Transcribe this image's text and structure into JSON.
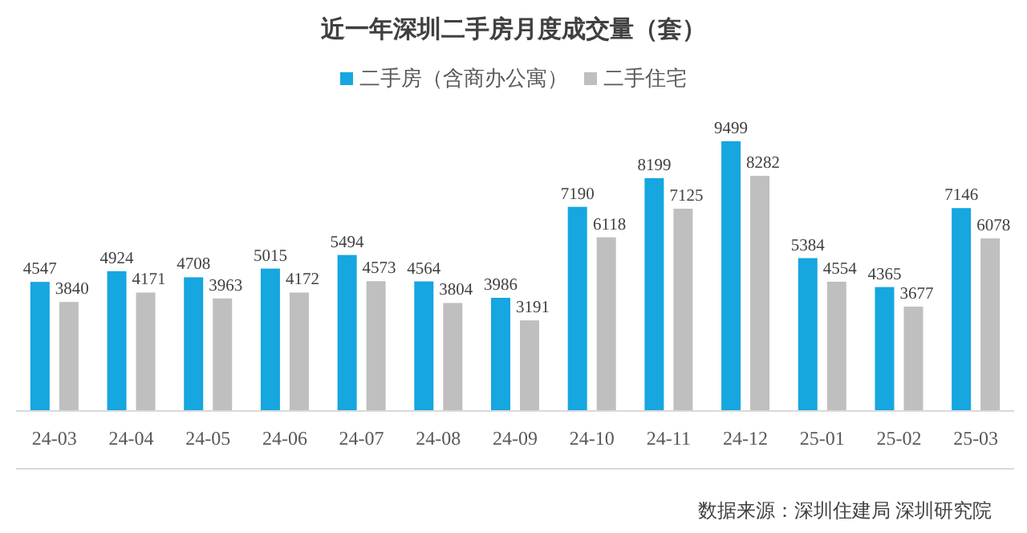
{
  "chart_data": {
    "type": "bar",
    "title": "近一年深圳二手房月度成交量（套）",
    "categories": [
      "24-03",
      "24-04",
      "24-05",
      "24-06",
      "24-07",
      "24-08",
      "24-09",
      "24-10",
      "24-11",
      "24-12",
      "25-01",
      "25-02",
      "25-03"
    ],
    "series": [
      {
        "name": "二手房（含商办公寓）",
        "color": "#16a6e0",
        "values": [
          4547,
          4924,
          4708,
          5015,
          5494,
          4564,
          3986,
          7190,
          8199,
          9499,
          5384,
          4365,
          7146
        ]
      },
      {
        "name": "二手住宅",
        "color": "#bfbfbf",
        "values": [
          3840,
          4171,
          3963,
          4172,
          4573,
          3804,
          3191,
          6118,
          7125,
          8282,
          4554,
          3677,
          6078
        ]
      }
    ],
    "data_labels": true,
    "legend": "top",
    "annotations": [
      "数据来源：深圳住建局 深圳研究院"
    ]
  }
}
